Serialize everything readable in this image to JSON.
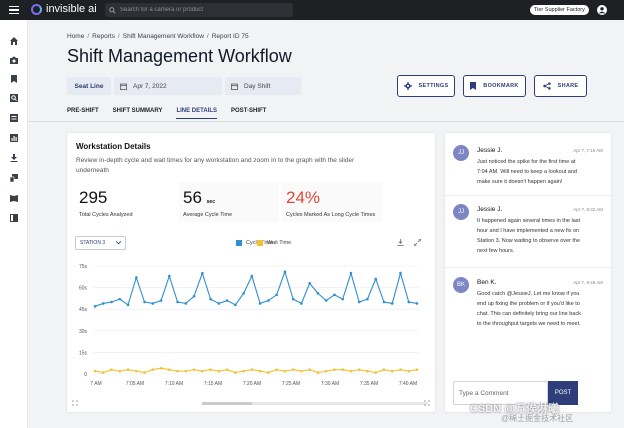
{
  "app": {
    "logo_text": "invisible ai"
  },
  "search": {
    "placeholder": "Search for a camera or product"
  },
  "factory_label": "Tier Supplier Factory",
  "sidebar": {
    "items": [
      "home-icon",
      "camera-icon",
      "bookmark-icon",
      "search-icon",
      "report-icon",
      "chart-icon",
      "download-icon",
      "device-icon",
      "book-icon",
      "document-icon"
    ]
  },
  "breadcrumb": [
    "Home",
    "Reports",
    "Shift Management Workflow",
    "Report ID 75"
  ],
  "breadcrumb_sep": "/",
  "page_title": "Shift Management Workflow",
  "filters": {
    "seat": "Seat Line",
    "date": "Apr 7, 2022",
    "shift": "Day Shift"
  },
  "actions": {
    "settings": "SETTINGS",
    "bookmark": "BOOKMARK",
    "share": "SHARE"
  },
  "tabs": [
    {
      "label": "PRE-SHIFT",
      "active": false
    },
    {
      "label": "SHIFT SUMMARY",
      "active": false
    },
    {
      "label": "LINE DETAILS",
      "active": true
    },
    {
      "label": "POST-SHIFT",
      "active": false
    }
  ],
  "workstation": {
    "title": "Workstation Details",
    "description": "Review in-depth cycle and wait times for any workstation and zoom in to the graph with the slider underneath",
    "stats": [
      {
        "value": "295",
        "unit": "",
        "label": "Total Cycles Analyzed"
      },
      {
        "value": "56",
        "unit": "sec",
        "label": "Average Cycle Time"
      },
      {
        "value": "24%",
        "unit": "",
        "label": "Cycles Marked As Long Cycle Times"
      }
    ],
    "station_select": "STATION 3",
    "legend": {
      "cycle": "Cycle Time",
      "wait": "Wait Time"
    },
    "colors": {
      "cycle": "#2f8fd0",
      "wait": "#f2c12e",
      "accent": "#2e3e7a",
      "alert": "#e0483b"
    }
  },
  "chart_data": {
    "type": "line",
    "title": "",
    "xlabel": "",
    "ylabel": "",
    "y_ticks": [
      "75s",
      "60s",
      "45s",
      "30s",
      "15s",
      "0"
    ],
    "ylim": [
      0,
      75
    ],
    "x_ticks": [
      "7 AM",
      "7:05 AM",
      "7:10 AM",
      "7:15 AM",
      "7:20 AM",
      "7:25 AM",
      "7:30 AM",
      "7:35 AM",
      "7:40 AM"
    ],
    "series": [
      {
        "name": "Cycle Time",
        "values": [
          47,
          49,
          50,
          52,
          48,
          67,
          50,
          49,
          51,
          68,
          50,
          49,
          54,
          70,
          52,
          49,
          51,
          48,
          56,
          68,
          49,
          51,
          55,
          71,
          52,
          49,
          63,
          56,
          51,
          55,
          52,
          70,
          50,
          52,
          66,
          50,
          49,
          70,
          50,
          49
        ]
      },
      {
        "name": "Wait Time",
        "values": [
          2,
          1,
          3,
          2,
          3,
          2,
          1,
          3,
          4,
          3,
          2,
          2,
          3,
          2,
          3,
          2,
          3,
          1,
          2,
          3,
          2,
          1,
          3,
          2,
          3,
          2,
          3,
          1,
          2,
          3,
          3,
          2,
          3,
          2,
          1,
          3,
          2,
          3,
          2,
          3
        ]
      }
    ]
  },
  "comments": [
    {
      "initials": "JJ",
      "author": "Jessie J.",
      "time": "Apr 7, 7:16 AM",
      "text": "Just noticed the spike for the first time at 7:04 AM. Will need to keep a lookout and make sure it doesn't happen again!"
    },
    {
      "initials": "JJ",
      "author": "Jessie J.",
      "time": "Apr 7, 8:32 AM",
      "text": "It happened again several times in the last hour and I have implemented a new fix on Station 3. Now waiting to observe over the next few hours."
    },
    {
      "initials": "BK",
      "author": "Ben K.",
      "time": "Apr 7, 9:49 AM",
      "text": "Good catch @JessieJ. Let me know if you end up fixing the problem or if you'd like to chat. This can definitely bring our line back to the throughput targets we need to meet."
    }
  ],
  "comment_input": {
    "placeholder": "Type a Comment",
    "post": "POST"
  },
  "watermark": {
    "line1": "CSDN @万俟淋曦",
    "line2": "@稀土掘金技术社区"
  }
}
